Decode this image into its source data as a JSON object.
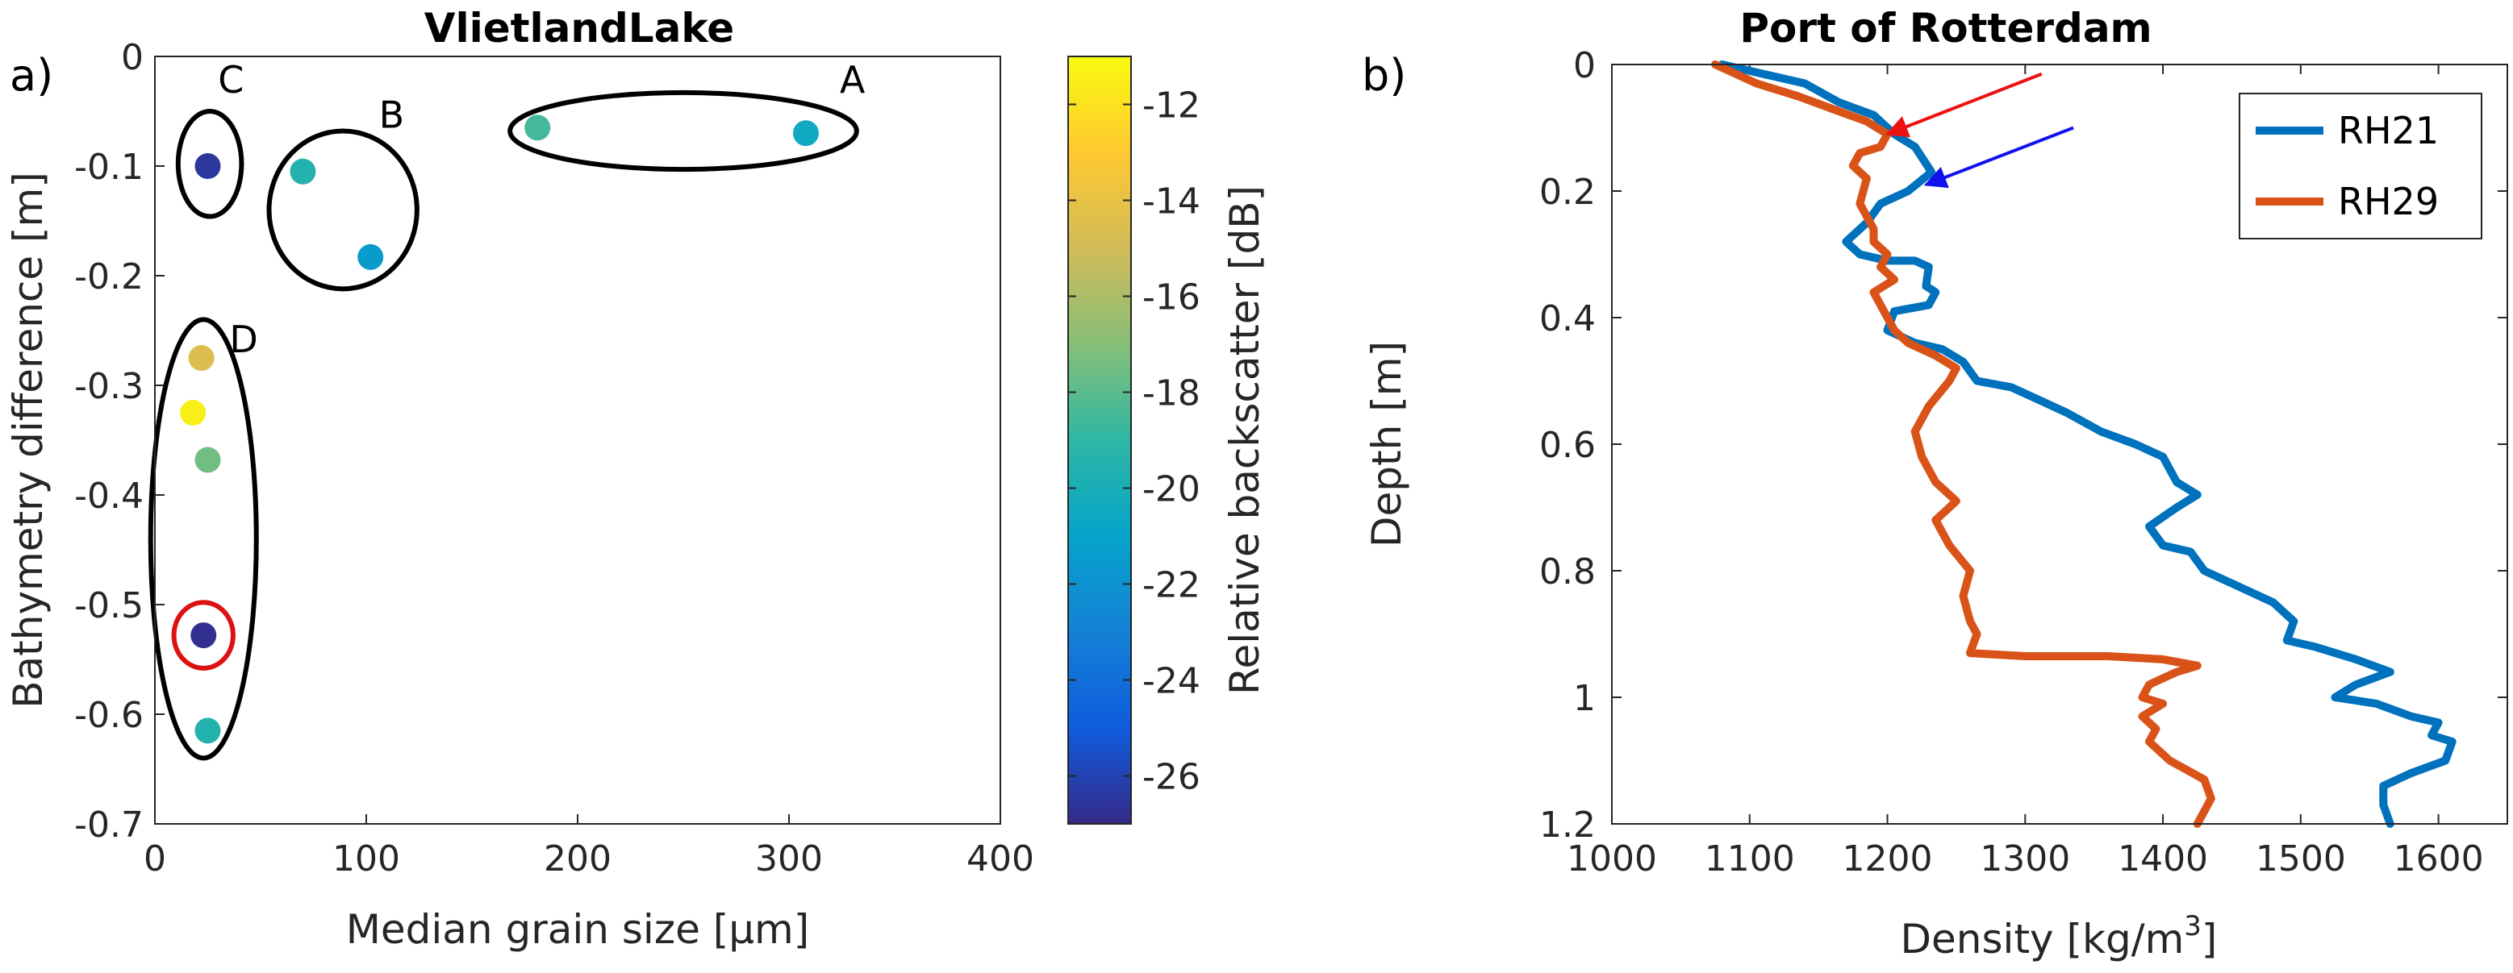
{
  "chart_data": [
    {
      "type": "scatter",
      "panel_label": "a)",
      "title": "VlietlandLake",
      "xlabel": "Median grain size [μm]",
      "ylabel": "Bathymetry difference [m]",
      "xlim": [
        0,
        400
      ],
      "ylim": [
        -0.7,
        0
      ],
      "xticks": [
        0,
        100,
        200,
        300,
        400
      ],
      "yticks": [
        0,
        -0.1,
        -0.2,
        -0.3,
        -0.4,
        -0.5,
        -0.6,
        -0.7
      ],
      "colorbar": {
        "label": "Relative backscatter [dB]",
        "range": [
          -27,
          -11
        ],
        "ticks": [
          -12,
          -14,
          -16,
          -18,
          -20,
          -22,
          -24,
          -26
        ]
      },
      "points": [
        {
          "x": 181,
          "y": -0.065,
          "c": -18.5
        },
        {
          "x": 308,
          "y": -0.07,
          "c": -20.5
        },
        {
          "x": 70,
          "y": -0.105,
          "c": -19.5
        },
        {
          "x": 102,
          "y": -0.183,
          "c": -21.5
        },
        {
          "x": 25,
          "y": -0.1,
          "c": -26.5
        },
        {
          "x": 22,
          "y": -0.275,
          "c": -14.5
        },
        {
          "x": 18,
          "y": -0.325,
          "c": -11.5
        },
        {
          "x": 25,
          "y": -0.368,
          "c": -17.5
        },
        {
          "x": 23,
          "y": -0.528,
          "c": -26.8
        },
        {
          "x": 25,
          "y": -0.615,
          "c": -19.5
        }
      ],
      "groups": [
        {
          "label": "A",
          "cx": 250,
          "cy": -0.068,
          "rx": 82,
          "ry": 0.035,
          "color": "#000000"
        },
        {
          "label": "B",
          "cx": 89,
          "cy": -0.14,
          "rx": 35,
          "ry": 0.072,
          "color": "#000000"
        },
        {
          "label": "C",
          "cx": 26,
          "cy": -0.098,
          "rx": 15,
          "ry": 0.048,
          "color": "#000000"
        },
        {
          "label": "D",
          "cx": 23,
          "cy": -0.44,
          "rx": 25,
          "ry": 0.2,
          "color": "#000000"
        },
        {
          "label": "",
          "cx": 23,
          "cy": -0.528,
          "rx": 14,
          "ry": 0.03,
          "color": "#dd1111"
        }
      ],
      "group_labels": [
        {
          "text": "A",
          "x": 330,
          "y": -0.033
        },
        {
          "text": "B",
          "x": 112,
          "y": -0.065
        },
        {
          "text": "C",
          "x": 36,
          "y": -0.033
        },
        {
          "text": "D",
          "x": 42,
          "y": -0.27
        }
      ]
    },
    {
      "type": "line",
      "panel_label": "b)",
      "title": "Port of Rotterdam",
      "xlabel": "Density [kg/m",
      "xlabel_sup": "3",
      "xlabel_end": "]",
      "ylabel": "Depth [m]",
      "xlim": [
        1000,
        1650
      ],
      "ylim": [
        0,
        1.2
      ],
      "y_reversed": true,
      "xticks": [
        1000,
        1100,
        1200,
        1300,
        1400,
        1500,
        1600
      ],
      "yticks": [
        0,
        0.2,
        0.4,
        0.6,
        0.8,
        1,
        1.2
      ],
      "series": [
        {
          "name": "RH21",
          "color": "#0072BD",
          "points": [
            [
              1080,
              0
            ],
            [
              1140,
              0.03
            ],
            [
              1165,
              0.06
            ],
            [
              1190,
              0.08
            ],
            [
              1205,
              0.11
            ],
            [
              1220,
              0.13
            ],
            [
              1232,
              0.17
            ],
            [
              1215,
              0.2
            ],
            [
              1195,
              0.22
            ],
            [
              1185,
              0.25
            ],
            [
              1170,
              0.28
            ],
            [
              1180,
              0.3
            ],
            [
              1200,
              0.31
            ],
            [
              1220,
              0.31
            ],
            [
              1230,
              0.32
            ],
            [
              1228,
              0.35
            ],
            [
              1235,
              0.36
            ],
            [
              1230,
              0.38
            ],
            [
              1205,
              0.39
            ],
            [
              1200,
              0.42
            ],
            [
              1220,
              0.44
            ],
            [
              1240,
              0.45
            ],
            [
              1255,
              0.47
            ],
            [
              1265,
              0.5
            ],
            [
              1290,
              0.51
            ],
            [
              1310,
              0.53
            ],
            [
              1330,
              0.55
            ],
            [
              1355,
              0.58
            ],
            [
              1380,
              0.6
            ],
            [
              1400,
              0.62
            ],
            [
              1410,
              0.66
            ],
            [
              1425,
              0.68
            ],
            [
              1410,
              0.7
            ],
            [
              1390,
              0.73
            ],
            [
              1400,
              0.76
            ],
            [
              1420,
              0.77
            ],
            [
              1430,
              0.8
            ],
            [
              1460,
              0.83
            ],
            [
              1480,
              0.85
            ],
            [
              1495,
              0.88
            ],
            [
              1490,
              0.91
            ],
            [
              1510,
              0.92
            ],
            [
              1540,
              0.94
            ],
            [
              1565,
              0.96
            ],
            [
              1540,
              0.98
            ],
            [
              1525,
              1
            ],
            [
              1555,
              1.01
            ],
            [
              1580,
              1.03
            ],
            [
              1600,
              1.04
            ],
            [
              1595,
              1.06
            ],
            [
              1610,
              1.07
            ],
            [
              1605,
              1.1
            ],
            [
              1580,
              1.12
            ],
            [
              1560,
              1.14
            ],
            [
              1560,
              1.17
            ],
            [
              1565,
              1.2
            ]
          ]
        },
        {
          "name": "RH29",
          "color": "#D95319",
          "points": [
            [
              1075,
              0
            ],
            [
              1105,
              0.03
            ],
            [
              1135,
              0.05
            ],
            [
              1160,
              0.07
            ],
            [
              1185,
              0.09
            ],
            [
              1200,
              0.11
            ],
            [
              1195,
              0.13
            ],
            [
              1180,
              0.14
            ],
            [
              1175,
              0.16
            ],
            [
              1185,
              0.18
            ],
            [
              1180,
              0.22
            ],
            [
              1190,
              0.26
            ],
            [
              1190,
              0.28
            ],
            [
              1200,
              0.3
            ],
            [
              1195,
              0.32
            ],
            [
              1205,
              0.34
            ],
            [
              1190,
              0.36
            ],
            [
              1195,
              0.38
            ],
            [
              1205,
              0.42
            ],
            [
              1215,
              0.44
            ],
            [
              1235,
              0.46
            ],
            [
              1250,
              0.48
            ],
            [
              1245,
              0.5
            ],
            [
              1230,
              0.54
            ],
            [
              1220,
              0.58
            ],
            [
              1225,
              0.62
            ],
            [
              1235,
              0.66
            ],
            [
              1250,
              0.69
            ],
            [
              1235,
              0.72
            ],
            [
              1245,
              0.76
            ],
            [
              1260,
              0.8
            ],
            [
              1255,
              0.84
            ],
            [
              1260,
              0.88
            ],
            [
              1265,
              0.9
            ],
            [
              1260,
              0.93
            ],
            [
              1300,
              0.935
            ],
            [
              1360,
              0.935
            ],
            [
              1400,
              0.94
            ],
            [
              1425,
              0.95
            ],
            [
              1410,
              0.96
            ],
            [
              1390,
              0.98
            ],
            [
              1385,
              1
            ],
            [
              1400,
              1.01
            ],
            [
              1385,
              1.03
            ],
            [
              1395,
              1.05
            ],
            [
              1390,
              1.07
            ],
            [
              1405,
              1.1
            ],
            [
              1430,
              1.13
            ],
            [
              1435,
              1.16
            ],
            [
              1425,
              1.2
            ]
          ]
        }
      ],
      "arrows": [
        {
          "color": "#ee1111",
          "from": [
            1312,
            0.015
          ],
          "to": [
            1200,
            0.11
          ]
        },
        {
          "color": "#1111ee",
          "from": [
            1335,
            0.1
          ],
          "to": [
            1228,
            0.19
          ]
        }
      ],
      "legend": {
        "entries": [
          "RH21",
          "RH29"
        ],
        "placement": "top-right"
      }
    }
  ]
}
